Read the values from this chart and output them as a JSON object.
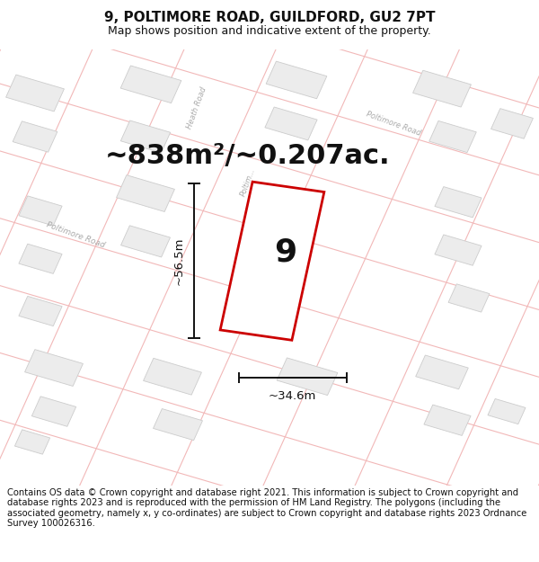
{
  "title": "9, POLTIMORE ROAD, GUILDFORD, GU2 7PT",
  "subtitle": "Map shows position and indicative extent of the property.",
  "area_text": "~838m²/~0.207ac.",
  "property_number": "9",
  "width_label": "~34.6m",
  "height_label": "~56.5m",
  "footer_text": "Contains OS data © Crown copyright and database right 2021. This information is subject to Crown copyright and database rights 2023 and is reproduced with the permission of HM Land Registry. The polygons (including the associated geometry, namely x, y co-ordinates) are subject to Crown copyright and database rights 2023 Ordnance Survey 100026316.",
  "bg_color": "#ffffff",
  "map_bg": "#ffffff",
  "road_color": "#f2b8b8",
  "road_lw": 0.8,
  "building_fill": "#ececec",
  "building_edge": "#cccccc",
  "property_fill": "#ffffff",
  "property_edge": "#cc0000",
  "road_label_color": "#aaaaaa",
  "dim_color": "#111111",
  "title_fontsize": 11,
  "subtitle_fontsize": 9,
  "area_fontsize": 22,
  "number_fontsize": 26,
  "dim_fontsize": 9.5,
  "footer_fontsize": 7.2
}
